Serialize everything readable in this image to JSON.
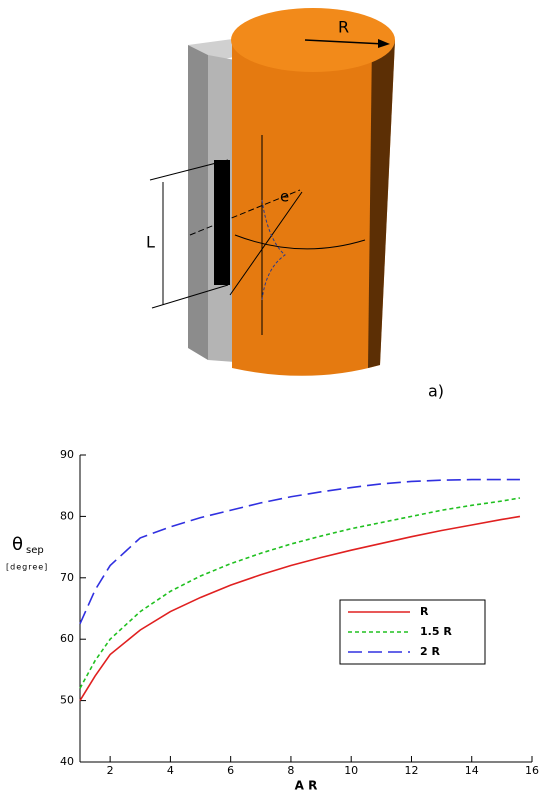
{
  "figure_a": {
    "radius_label": "R",
    "length_label": "L",
    "angle_label": "e",
    "panel_label": "a)"
  },
  "chart_data": {
    "type": "line",
    "x": [
      1,
      1.5,
      2,
      3,
      4,
      5,
      6,
      7,
      8,
      9,
      10,
      11,
      12,
      13,
      14,
      15,
      15.6
    ],
    "series": [
      {
        "name": "R",
        "color": "#e02020",
        "dash": "solid",
        "values": [
          50,
          54,
          57.5,
          61.5,
          64.5,
          66.8,
          68.8,
          70.5,
          72,
          73.3,
          74.5,
          75.6,
          76.7,
          77.7,
          78.6,
          79.5,
          80
        ]
      },
      {
        "name": "1.5 R",
        "color": "#20c020",
        "dash": "dotted",
        "values": [
          52,
          56.5,
          60,
          64.5,
          67.8,
          70.3,
          72.3,
          74,
          75.5,
          76.8,
          78,
          79,
          80,
          81,
          81.8,
          82.5,
          83
        ]
      },
      {
        "name": "2 R",
        "color": "#3030e0",
        "dash": "dashed",
        "values": [
          62.5,
          68,
          72,
          76.5,
          78.3,
          79.8,
          81,
          82.2,
          83.2,
          84,
          84.7,
          85.3,
          85.7,
          85.9,
          86,
          86,
          86
        ]
      }
    ],
    "xlabel": "A R",
    "ylabel": {
      "symbol": "θ",
      "subscript": "sep",
      "unit": "[degree]"
    },
    "xlim": [
      1,
      16
    ],
    "ylim": [
      40,
      90
    ],
    "xticks": [
      2,
      4,
      6,
      8,
      10,
      12,
      14,
      16
    ],
    "yticks": [
      40,
      50,
      60,
      70,
      80,
      90
    ]
  }
}
